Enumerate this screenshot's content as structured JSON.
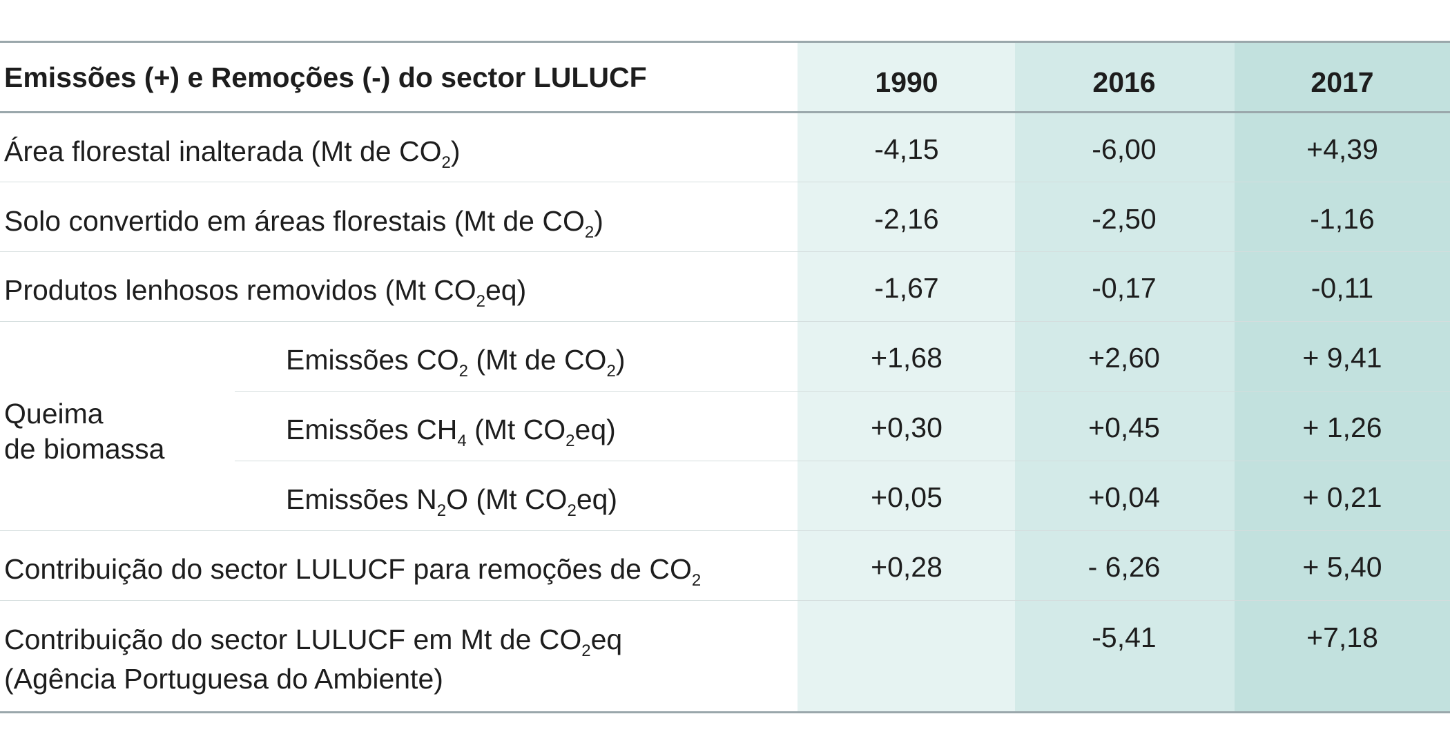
{
  "colors": {
    "col_1990": "#e6f3f2",
    "col_2016": "#d3eae8",
    "col_2017": "#c2e1de",
    "rule_strong": "#9aa7ab",
    "rule_light": "#d4dddd"
  },
  "table": {
    "title": "Emissões (+) e Remoções (-) do sector LULUCF",
    "years": [
      "1990",
      "2016",
      "2017"
    ],
    "rows": [
      {
        "pre": "Área florestal inalterada (Mt de CO",
        "sub": "2",
        "post": ")",
        "values": [
          "-4,15",
          "-6,00",
          "+4,39"
        ]
      },
      {
        "pre": "Solo convertido em áreas florestais (Mt de CO",
        "sub": "2",
        "post": ")",
        "values": [
          "-2,16",
          "-2,50",
          "-1,16"
        ]
      },
      {
        "pre": "Produtos lenhosos removidos (Mt CO",
        "sub": "2",
        "post": "eq)",
        "values": [
          "-1,67",
          "-0,17",
          "-0,11"
        ]
      }
    ],
    "group": {
      "label_line1": "Queima",
      "label_line2": "de biomassa",
      "rows": [
        {
          "a": "Emissões CO",
          "a_sub": "2",
          "b": " (Mt de CO",
          "b_sub": "2",
          "c": ")",
          "values": [
            "+1,68",
            "+2,60",
            "+ 9,41"
          ]
        },
        {
          "a": "Emissões CH",
          "a_sub": "4",
          "b": " (Mt CO",
          "b_sub": "2",
          "c": "eq)",
          "values": [
            "+0,30",
            "+0,45",
            "+ 1,26"
          ]
        },
        {
          "a": "Emissões N",
          "a_sub": "2",
          "b": "O (Mt CO",
          "b_sub": "2",
          "c": "eq)",
          "values": [
            "+0,05",
            "+0,04",
            "+ 0,21"
          ]
        }
      ]
    },
    "contrib_row": {
      "pre": "Contribuição do sector LULUCF para remoções de CO",
      "sub": "2",
      "values": [
        "+0,28",
        "- 6,26",
        "+ 5,40"
      ]
    },
    "apa_row": {
      "line1_pre": "Contribuição do sector LULUCF em Mt de CO",
      "line1_sub": "2",
      "line1_post": "eq",
      "line2": "(Agência Portuguesa do Ambiente)",
      "values": [
        "",
        "-5,41",
        "+7,18"
      ]
    }
  }
}
